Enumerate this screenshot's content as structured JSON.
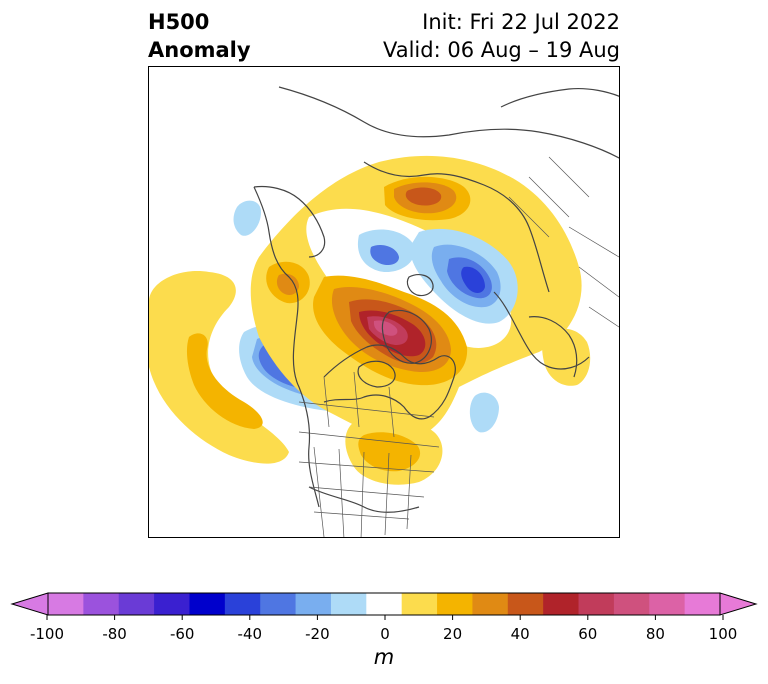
{
  "title": {
    "left_line1": "H500",
    "left_line2": "Anomaly",
    "right_line1": "Init: Fri 22 Jul 2022",
    "right_line2": "Valid: 06 Aug – 19 Aug"
  },
  "colorbar": {
    "units": "m",
    "tick_labels": [
      "-100",
      "-80",
      "-60",
      "-40",
      "-20",
      "0",
      "20",
      "40",
      "60",
      "80",
      "100"
    ],
    "levels": [
      -100,
      -90,
      -80,
      -70,
      -60,
      -50,
      -40,
      -30,
      -20,
      -10,
      10,
      20,
      30,
      40,
      50,
      60,
      70,
      80,
      90,
      100
    ],
    "colors": [
      "#d77ae3",
      "#9b52dd",
      "#6a3bd6",
      "#3a20d0",
      "#0000cc",
      "#2a41d9",
      "#4f76e2",
      "#79aeef",
      "#aedbf7",
      "#ffffff",
      "#fcdc4d",
      "#f4b400",
      "#e08a14",
      "#c8571a",
      "#b0232a",
      "#c13c5b",
      "#cf517e",
      "#dc62a6",
      "#e77ad7"
    ],
    "extend": "both"
  },
  "map": {
    "projection": "north-polar stereographic",
    "region": "Northern Hemisphere (North America, Arctic, Eurasia)",
    "features": [
      "coastlines",
      "country borders",
      "US state borders"
    ],
    "anomaly_centers": [
      {
        "location": "Greenland / Arctic",
        "sign": "positive",
        "peak_m": 80
      },
      {
        "location": "Gulf of Alaska / NE Pacific",
        "sign": "negative",
        "peak_m": -60
      },
      {
        "location": "Barents / Kara Sea",
        "sign": "negative",
        "peak_m": -50
      },
      {
        "location": "Central Siberia",
        "sign": "positive",
        "peak_m": 50
      },
      {
        "location": "NE Pacific (west of North America)",
        "sign": "positive",
        "peak_m": 30
      },
      {
        "location": "Eastern United States",
        "sign": "positive",
        "peak_m": 30
      },
      {
        "location": "Beaufort / Yukon",
        "sign": "positive",
        "peak_m": 40
      }
    ]
  }
}
